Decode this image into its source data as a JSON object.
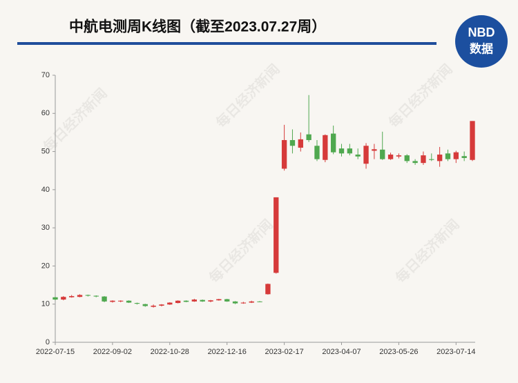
{
  "chart_data": {
    "type": "candlestick",
    "title": "中航电测周K线图（截至2023.07.27周）",
    "logo": {
      "top": "NBD",
      "bottom": "数据"
    },
    "watermark": "每日经济新闻",
    "up_color": "#d63a3a",
    "down_color": "#4fa84f",
    "categories": [
      "2022-07-15",
      null,
      null,
      null,
      null,
      null,
      null,
      "2022-09-02",
      null,
      null,
      null,
      null,
      null,
      null,
      "2022-10-28",
      null,
      null,
      null,
      null,
      null,
      null,
      "2022-12-16",
      null,
      null,
      null,
      null,
      null,
      null,
      "2023-02-17",
      null,
      null,
      null,
      null,
      null,
      null,
      "2023-04-07",
      null,
      null,
      null,
      null,
      null,
      null,
      "2023-05-26",
      null,
      null,
      null,
      null,
      null,
      null,
      "2023-07-14",
      null,
      null
    ],
    "open": [
      11.8,
      11.2,
      11.8,
      11.9,
      12.4,
      12.2,
      12.0,
      10.6,
      10.7,
      10.9,
      10.3,
      10.0,
      9.3,
      9.6,
      9.9,
      10.3,
      10.9,
      10.7,
      11.1,
      10.7,
      11.0,
      11.3,
      10.7,
      10.2,
      10.4,
      10.7,
      12.6,
      18.2,
      45.5,
      53.0,
      51.0,
      54.5,
      51.5,
      47.8,
      54.7,
      50.8,
      50.8,
      49.2,
      46.8,
      50.2,
      50.5,
      48.0,
      48.7,
      49.0,
      47.5,
      47.0,
      48.0,
      47.5,
      49.5,
      48.0,
      48.8,
      47.8
    ],
    "high": [
      11.9,
      12.1,
      12.4,
      12.6,
      12.5,
      12.3,
      12.1,
      11.0,
      11.0,
      11.0,
      10.4,
      10.1,
      9.9,
      10.0,
      10.5,
      11.0,
      11.0,
      11.4,
      11.2,
      11.1,
      11.4,
      11.4,
      10.8,
      10.6,
      10.9,
      10.8,
      15.4,
      38.0,
      57.0,
      55.8,
      55.0,
      64.8,
      53.0,
      54.5,
      56.8,
      52.0,
      52.0,
      50.8,
      52.2,
      52.0,
      55.2,
      49.7,
      49.5,
      49.3,
      48.0,
      50.0,
      49.5,
      51.2,
      50.5,
      50.2,
      50.0,
      58.0
    ],
    "low": [
      11.0,
      11.0,
      11.7,
      11.8,
      12.0,
      11.8,
      10.5,
      10.4,
      10.5,
      10.3,
      9.9,
      9.3,
      9.1,
      9.4,
      9.8,
      10.2,
      10.5,
      10.6,
      10.6,
      10.5,
      10.9,
      10.6,
      10.0,
      10.1,
      10.3,
      10.5,
      12.5,
      18.0,
      45.0,
      49.5,
      50.0,
      52.5,
      47.5,
      47.2,
      49.3,
      48.7,
      49.0,
      48.0,
      45.5,
      48.0,
      47.8,
      47.8,
      48.2,
      47.0,
      46.5,
      46.5,
      47.5,
      46.0,
      47.5,
      47.0,
      47.5,
      47.5
    ],
    "close": [
      11.2,
      11.9,
      12.1,
      12.4,
      12.2,
      12.0,
      10.7,
      10.9,
      10.9,
      10.4,
      10.1,
      9.5,
      9.6,
      9.9,
      10.4,
      10.9,
      10.6,
      11.2,
      10.7,
      11.0,
      11.3,
      10.7,
      10.2,
      10.4,
      10.7,
      10.6,
      15.3,
      38.0,
      53.0,
      51.5,
      53.2,
      53.0,
      48.0,
      54.3,
      49.8,
      49.5,
      49.5,
      48.7,
      51.5,
      50.6,
      48.0,
      49.2,
      49.0,
      47.5,
      47.0,
      49.0,
      47.8,
      49.2,
      48.0,
      49.8,
      48.3,
      58.0
    ],
    "ylim": [
      0,
      70
    ],
    "yticks": [
      0,
      10,
      20,
      30,
      40,
      50,
      60,
      70
    ]
  }
}
